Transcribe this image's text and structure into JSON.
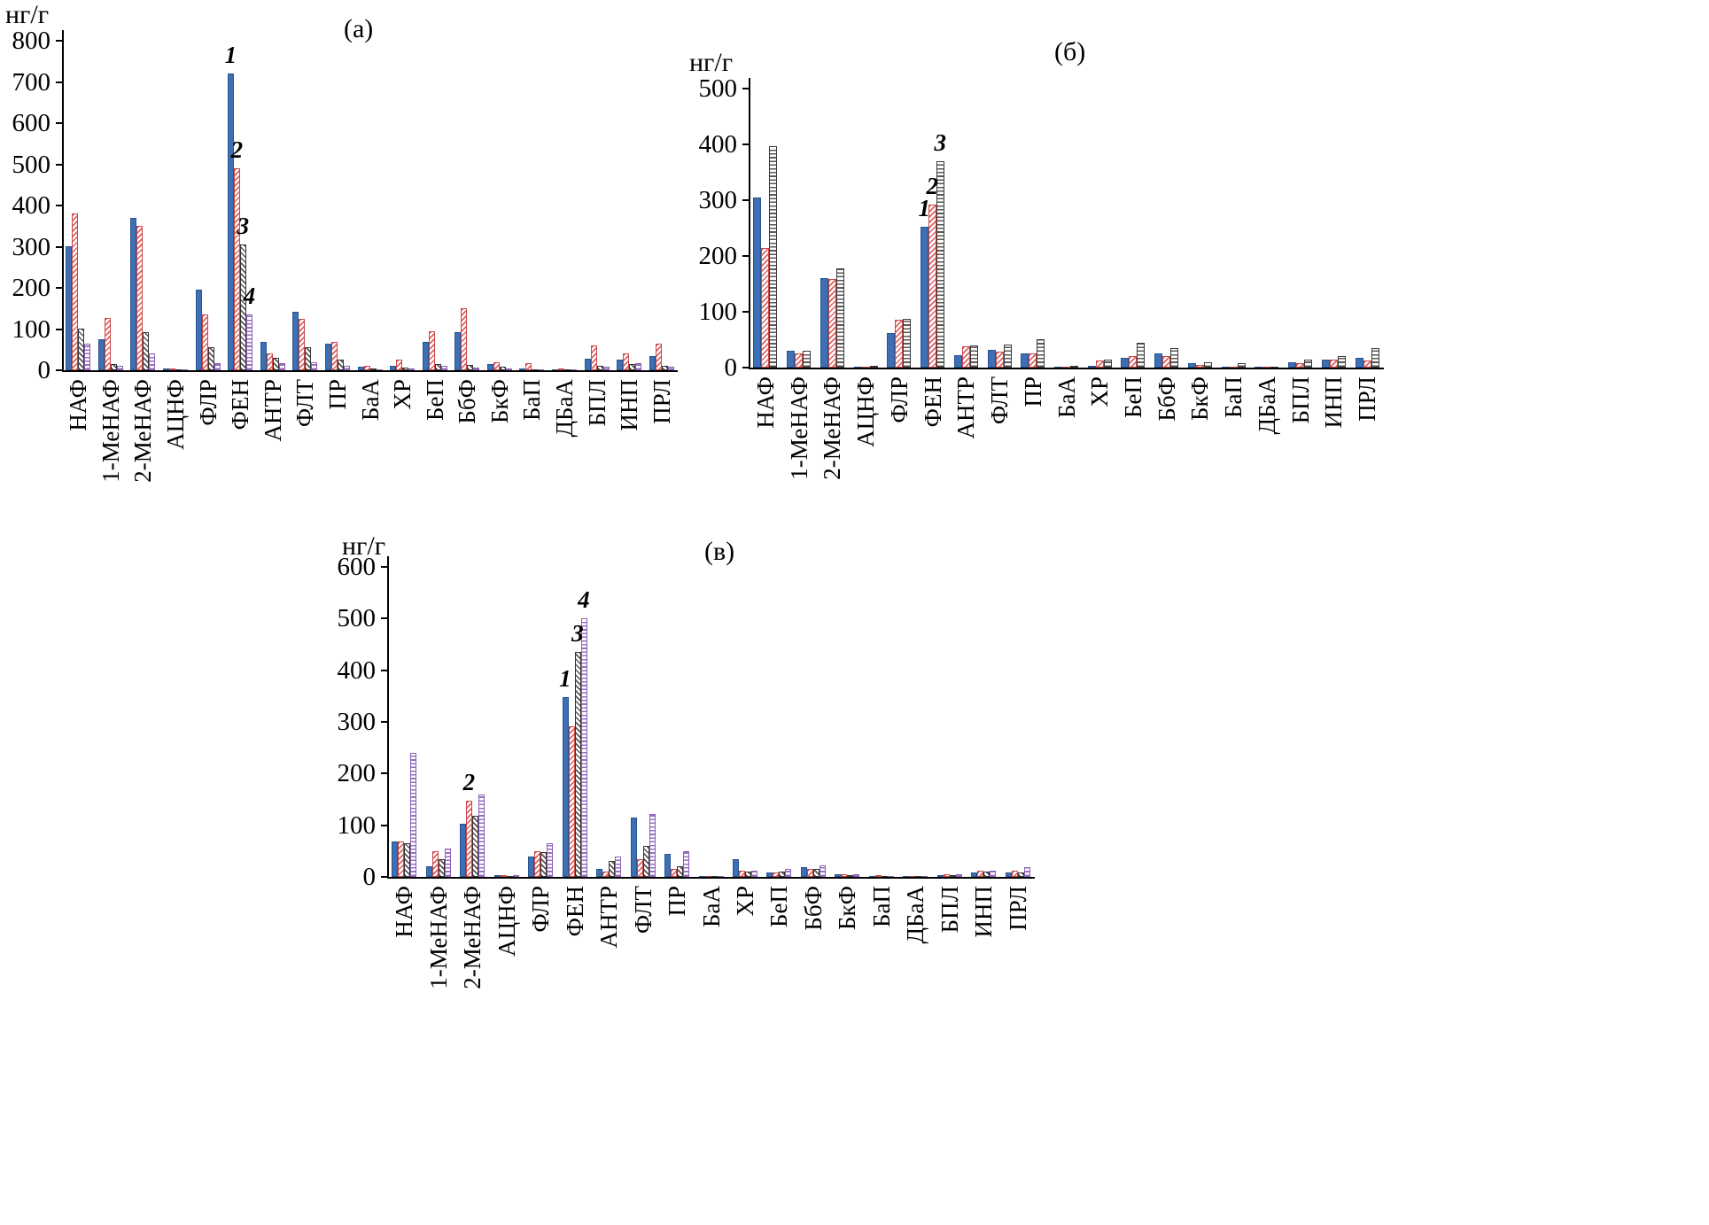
{
  "page": {
    "background": "#ffffff"
  },
  "chart_data": [
    {
      "id": "a",
      "type": "bar",
      "title": "(а)",
      "ylabel": "нг/г",
      "ylim": [
        0,
        800
      ],
      "ytick_step": 100,
      "yticks": [
        0,
        100,
        200,
        300,
        400,
        500,
        600,
        700,
        800
      ],
      "grid": false,
      "legend_position": "none",
      "categories": [
        "НАФ",
        "1-МеНАФ",
        "2-МеНАФ",
        "АЦНФ",
        "ФЛР",
        "ФЕН",
        "АНТР",
        "ФЛТ",
        "ПР",
        "БаА",
        "ХР",
        "БеП",
        "БбФ",
        "БкФ",
        "БаП",
        "ДБаА",
        "БПЛ",
        "ИНП",
        "ПРЛ"
      ],
      "series": [
        {
          "name": "1",
          "pattern": "solid-blue",
          "color": "#3d6fb5",
          "values": [
            300,
            75,
            370,
            5,
            195,
            720,
            68,
            142,
            65,
            8,
            10,
            68,
            92,
            15,
            5,
            3,
            28,
            25,
            35
          ]
        },
        {
          "name": "2",
          "pattern": "diag-red",
          "color": "#d94b4b",
          "values": [
            380,
            127,
            350,
            5,
            135,
            490,
            40,
            125,
            68,
            10,
            25,
            95,
            150,
            20,
            18,
            5,
            60,
            40,
            65
          ]
        },
        {
          "name": "3",
          "pattern": "diag-dark",
          "color": "#3a3a3a",
          "values": [
            100,
            15,
            92,
            3,
            55,
            305,
            30,
            55,
            25,
            4,
            6,
            15,
            12,
            8,
            3,
            2,
            10,
            15,
            10
          ]
        },
        {
          "name": "4",
          "pattern": "horiz-purple",
          "color": "#9467bd",
          "values": [
            65,
            10,
            40,
            2,
            18,
            135,
            18,
            20,
            10,
            3,
            5,
            10,
            6,
            5,
            2,
            2,
            8,
            18,
            8
          ]
        }
      ],
      "annotations": [
        {
          "text": "1",
          "category": "ФЕН",
          "series": 0
        },
        {
          "text": "2",
          "category": "ФЕН",
          "series": 1
        },
        {
          "text": "3",
          "category": "ФЕН",
          "series": 2
        },
        {
          "text": "4",
          "category": "ФЕН",
          "series": 3
        }
      ]
    },
    {
      "id": "b",
      "type": "bar",
      "title": "(б)",
      "ylabel": "нг/г",
      "ylim": [
        0,
        500
      ],
      "ytick_step": 100,
      "yticks": [
        0,
        100,
        200,
        300,
        400,
        500
      ],
      "grid": false,
      "legend_position": "none",
      "categories": [
        "НАФ",
        "1-МеНАФ",
        "2-МеНАФ",
        "АЦНФ",
        "ФЛР",
        "ФЕН",
        "АНТР",
        "ФЛТ",
        "ПР",
        "БаА",
        "ХР",
        "БеП",
        "БбФ",
        "БкФ",
        "БаП",
        "ДБаА",
        "БПЛ",
        "ИНП",
        "ПРЛ"
      ],
      "series": [
        {
          "name": "1",
          "pattern": "solid-blue",
          "color": "#3d6fb5",
          "values": [
            305,
            30,
            160,
            2,
            62,
            252,
            22,
            32,
            25,
            2,
            3,
            18,
            25,
            8,
            2,
            1,
            10,
            15,
            18
          ]
        },
        {
          "name": "2",
          "pattern": "diag-red",
          "color": "#d94b4b",
          "values": [
            215,
            25,
            158,
            2,
            85,
            292,
            38,
            28,
            25,
            2,
            12,
            20,
            20,
            5,
            2,
            1,
            8,
            15,
            12
          ]
        },
        {
          "name": "3",
          "pattern": "horiz-gray",
          "color": "#5a5a5a",
          "values": [
            397,
            30,
            178,
            3,
            88,
            370,
            40,
            42,
            50,
            3,
            15,
            45,
            35,
            10,
            8,
            2,
            15,
            20,
            35
          ]
        }
      ],
      "annotations": [
        {
          "text": "1",
          "category": "ФЕН",
          "series": 0
        },
        {
          "text": "2",
          "category": "ФЕН",
          "series": 1
        },
        {
          "text": "3",
          "category": "ФЕН",
          "series": 2
        }
      ]
    },
    {
      "id": "v",
      "type": "bar",
      "title": "(в)",
      "ylabel": "нг/г",
      "ylim": [
        0,
        600
      ],
      "ytick_step": 100,
      "yticks": [
        0,
        100,
        200,
        300,
        400,
        500,
        600
      ],
      "grid": false,
      "legend_position": "none",
      "categories": [
        "НАФ",
        "1-МеНАФ",
        "2-МеНАФ",
        "АЦНФ",
        "ФЛР",
        "ФЕН",
        "АНТР",
        "ФЛТ",
        "ПР",
        "БаА",
        "ХР",
        "БеП",
        "БбФ",
        "БкФ",
        "БаП",
        "ДБаА",
        "БПЛ",
        "ИНП",
        "ПРЛ"
      ],
      "series": [
        {
          "name": "1",
          "pattern": "solid-blue",
          "color": "#3d6fb5",
          "values": [
            68,
            20,
            103,
            3,
            40,
            348,
            15,
            115,
            45,
            2,
            35,
            8,
            18,
            5,
            2,
            1,
            3,
            8,
            8
          ]
        },
        {
          "name": "2",
          "pattern": "diag-red",
          "color": "#d94b4b",
          "values": [
            68,
            50,
            148,
            3,
            50,
            292,
            10,
            35,
            15,
            1,
            12,
            8,
            15,
            5,
            3,
            1,
            5,
            12,
            12
          ]
        },
        {
          "name": "3",
          "pattern": "diag-dark",
          "color": "#3a3a3a",
          "values": [
            65,
            35,
            118,
            2,
            48,
            435,
            30,
            60,
            20,
            1,
            10,
            10,
            15,
            3,
            2,
            1,
            3,
            10,
            8
          ]
        },
        {
          "name": "4",
          "pattern": "horiz-purple",
          "color": "#9467bd",
          "values": [
            240,
            55,
            160,
            3,
            65,
            500,
            40,
            122,
            50,
            2,
            12,
            15,
            22,
            5,
            2,
            1,
            5,
            12,
            18
          ]
        }
      ],
      "annotations": [
        {
          "text": "2",
          "category": "2-МеНАФ",
          "series": 1
        },
        {
          "text": "1",
          "category": "ФЕН",
          "series": 0
        },
        {
          "text": "3",
          "category": "ФЕН",
          "series": 2
        },
        {
          "text": "4",
          "category": "ФЕН",
          "series": 3
        }
      ]
    }
  ]
}
